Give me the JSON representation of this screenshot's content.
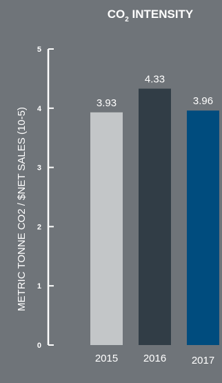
{
  "chart_data": {
    "type": "bar",
    "title": {
      "main": "CO",
      "subscript": "2",
      "rest": " INTENSITY"
    },
    "ylabel": "METRIC TONNE CO2 / $NET SALES (10-5)",
    "xlabel": "",
    "categories": [
      "2015",
      "2016",
      "2017"
    ],
    "values": [
      3.93,
      4.33,
      3.96
    ],
    "value_labels": [
      "3.93",
      "4.33",
      "3.96"
    ],
    "bar_colors": [
      "#c3c6c8",
      "#313d46",
      "#004c7e"
    ],
    "ylim": [
      0,
      5
    ],
    "yticks": [
      0,
      1,
      2,
      3,
      4,
      5
    ],
    "ytick_labels": [
      "0",
      "1",
      "2",
      "3",
      "4",
      "5"
    ],
    "grid": false,
    "legend": "none"
  }
}
